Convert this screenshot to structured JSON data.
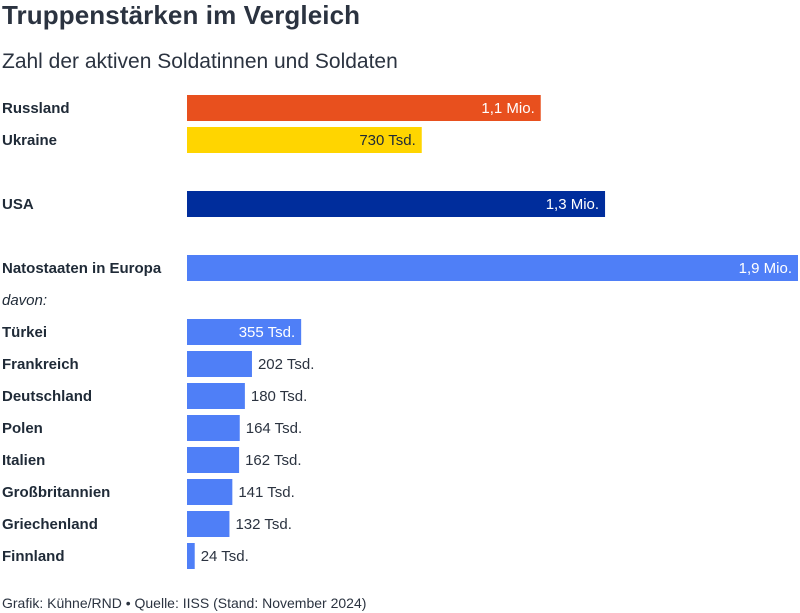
{
  "title": "Truppenstärken im Vergleich",
  "subtitle": "Zahl der aktiven Soldatinnen und Soldaten",
  "source": "Grafik: Kühne/RND • Quelle: IISS (Stand: November 2024)",
  "note": "davon:",
  "colors": {
    "russia": "#e8501e",
    "ukraine": "#ffd500",
    "usa": "#002d9c",
    "nato": "#4f7ff7",
    "label_inside": "#ffffff",
    "label_outside": "#2b3340"
  },
  "chart_data": {
    "type": "bar",
    "orientation": "horizontal",
    "unit": "Soldatinnen und Soldaten",
    "xlim": [
      0,
      1900000
    ],
    "grid": false,
    "categories": [
      "Russland",
      "Ukraine",
      "USA",
      "Natostaaten in Europa",
      "Türkei",
      "Frankreich",
      "Deutschland",
      "Polen",
      "Italien",
      "Großbritannien",
      "Griechenland",
      "Finnland"
    ],
    "values": [
      1100000,
      730000,
      1300000,
      1900000,
      355000,
      202000,
      180000,
      164000,
      162000,
      141000,
      132000,
      24000
    ],
    "value_labels": [
      "1,1 Mio.",
      "730 Tsd.",
      "1,3 Mio.",
      "1,9 Mio.",
      "355 Tsd.",
      "202 Tsd.",
      "180 Tsd.",
      "164 Tsd.",
      "162 Tsd.",
      "141 Tsd.",
      "132 Tsd.",
      "24 Tsd."
    ],
    "bar_colors": [
      "#e8501e",
      "#ffd500",
      "#002d9c",
      "#4f7ff7",
      "#4f7ff7",
      "#4f7ff7",
      "#4f7ff7",
      "#4f7ff7",
      "#4f7ff7",
      "#4f7ff7",
      "#4f7ff7",
      "#4f7ff7"
    ],
    "label_position": [
      "inside",
      "inside",
      "inside",
      "inside",
      "inside",
      "outside",
      "outside",
      "outside",
      "outside",
      "outside",
      "outside",
      "outside"
    ],
    "label_text_colors": [
      "#ffffff",
      "#1f2a37",
      "#ffffff",
      "#ffffff",
      "#ffffff",
      "#2b3340",
      "#2b3340",
      "#2b3340",
      "#2b3340",
      "#2b3340",
      "#2b3340",
      "#2b3340"
    ]
  }
}
